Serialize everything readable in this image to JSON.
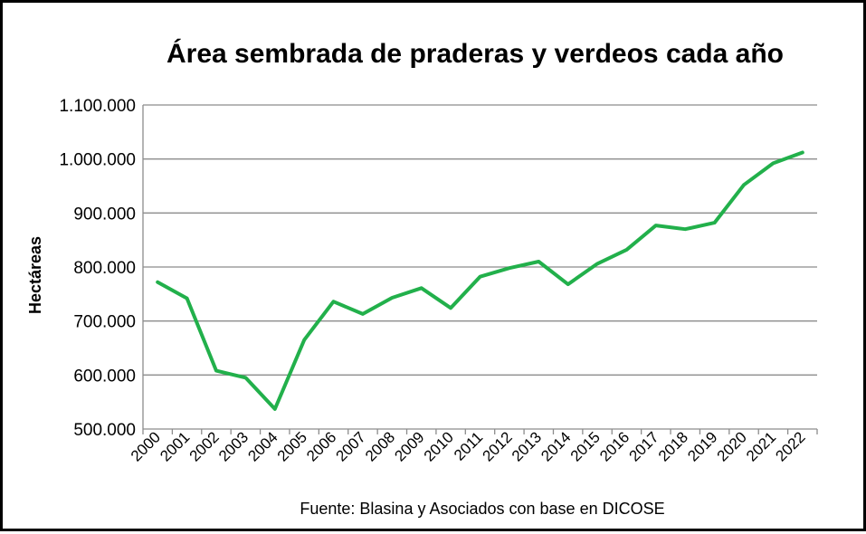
{
  "chart_data": {
    "type": "line",
    "title": "Área sembrada de praderas y verdeos cada año",
    "xlabel": "",
    "ylabel": "Hectáreas",
    "source": "Fuente: Blasina y Asociados con base en DICOSE",
    "categories": [
      "2000",
      "2001",
      "2002",
      "2003",
      "2004",
      "2005",
      "2006",
      "2007",
      "2008",
      "2009",
      "2010",
      "2011",
      "2012",
      "2013",
      "2014",
      "2015",
      "2016",
      "2017",
      "2018",
      "2019",
      "2020",
      "2021",
      "2022"
    ],
    "series": [
      {
        "color": "#22b04b",
        "values": [
          772000,
          742000,
          608000,
          595000,
          537000,
          665000,
          736000,
          713000,
          743000,
          761000,
          724000,
          782000,
          798000,
          810000,
          768000,
          806000,
          832000,
          877000,
          870000,
          882000,
          952000,
          992000,
          1012000
        ]
      }
    ],
    "ylim": [
      500000,
      1100000
    ],
    "yticks": [
      500000,
      600000,
      700000,
      800000,
      900000,
      1000000,
      1100000
    ],
    "ytick_labels": [
      "500.000",
      "600.000",
      "700.000",
      "800.000",
      "900.000",
      "1.000.000",
      "1.100.000"
    ],
    "grid": true,
    "legend": "none"
  }
}
